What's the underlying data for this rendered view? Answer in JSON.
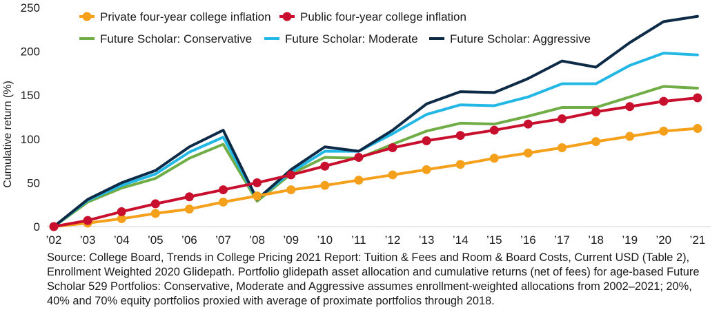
{
  "chart_data": {
    "type": "line",
    "title": "",
    "xlabel": "",
    "ylabel": "Cumulative return (%)",
    "x": [
      "’02",
      "’03",
      "’04",
      "’05",
      "’06",
      "’07",
      "’08",
      "’09",
      "’10",
      "’11",
      "’12",
      "’13",
      "’14",
      "’15",
      "’16",
      "’17",
      "’18",
      "’19",
      "’20",
      "’21"
    ],
    "ylim": [
      0,
      250
    ],
    "yticks": [
      0,
      50,
      100,
      150,
      200,
      250
    ],
    "grid": false,
    "legend_position": "top-center",
    "series": [
      {
        "name": "Private four-year college inflation",
        "color": "#f5a01a",
        "marker": true,
        "values": [
          0,
          4,
          9,
          15,
          20,
          28,
          35,
          42,
          47,
          53,
          59,
          65,
          71,
          78,
          84,
          90,
          97,
          103,
          109,
          112
        ]
      },
      {
        "name": "Public four-year college inflation",
        "color": "#c8102e",
        "marker": true,
        "values": [
          0,
          7,
          17,
          26,
          34,
          42,
          50,
          59,
          69,
          79,
          90,
          98,
          104,
          110,
          117,
          123,
          131,
          137,
          143,
          147
        ]
      },
      {
        "name": "Future Scholar: Conservative",
        "color": "#70ad47",
        "marker": false,
        "values": [
          0,
          28,
          44,
          55,
          78,
          94,
          29,
          60,
          79,
          78,
          94,
          109,
          118,
          117,
          126,
          136,
          136,
          148,
          160,
          158
        ]
      },
      {
        "name": "Future Scholar: Moderate",
        "color": "#23b7e5",
        "marker": false,
        "values": [
          0,
          30,
          47,
          60,
          85,
          102,
          31,
          62,
          86,
          86,
          106,
          128,
          139,
          138,
          148,
          163,
          163,
          184,
          198,
          196
        ]
      },
      {
        "name": "Future Scholar: Aggressive",
        "color": "#0d2a47",
        "marker": false,
        "values": [
          0,
          31,
          50,
          64,
          91,
          110,
          31,
          65,
          91,
          86,
          110,
          140,
          154,
          153,
          169,
          189,
          182,
          210,
          234,
          240
        ]
      }
    ]
  },
  "source_note": "Source: College Board, Trends in College Pricing 2021 Report: Tuition & Fees and Room & Board Costs, Current USD (Table 2), Enrollment Weighted 2020 Glidepath. Portfolio glidepath asset allocation and cumulative returns (net of fees) for age-based Future Scholar 529 Portfolios: Conservative, Moderate and Aggressive assumes enrollment-weighted allocations from 2002–2021; 20%, 40% and 70% equity portfolios proxied with average of proximate portfolios through 2018."
}
